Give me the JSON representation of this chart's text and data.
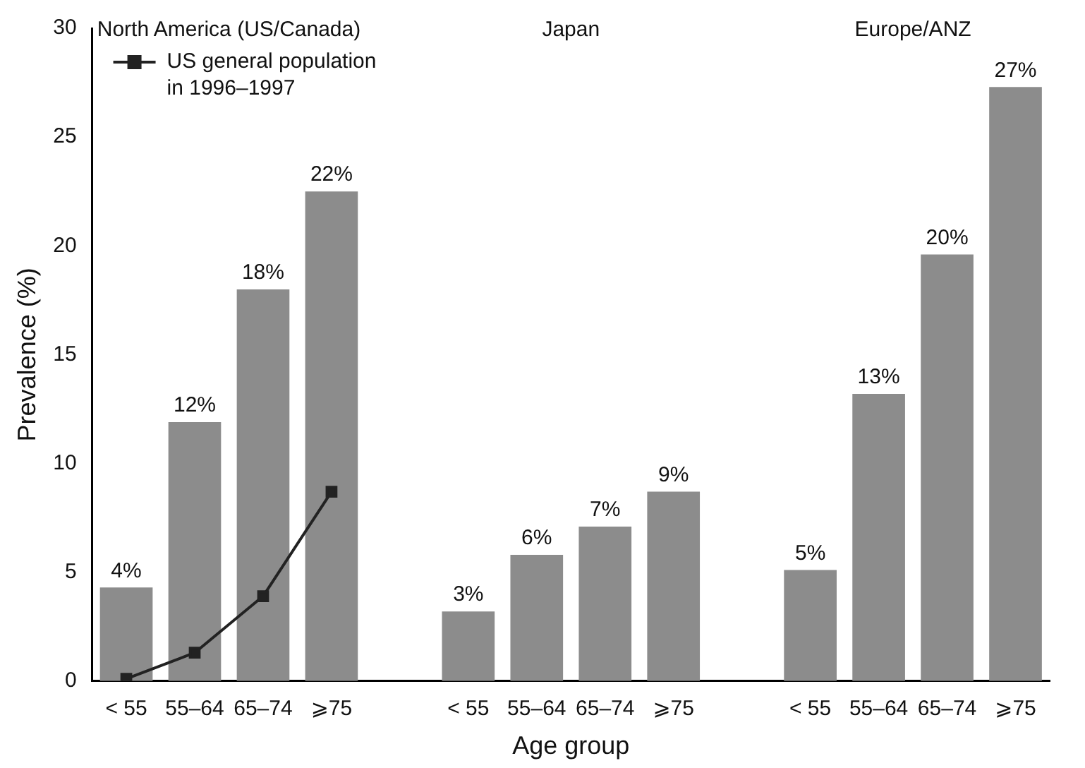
{
  "chart_data": {
    "type": "bar",
    "xlabel": "Age group",
    "ylabel": "Prevalence (%)",
    "annotations": [
      "North America (US/Canada)",
      "Japan",
      "Europe/ANZ"
    ],
    "categories": [
      "< 55",
      "55–64",
      "65–74",
      "⩾75",
      null,
      "< 55",
      "55–64",
      "65–74",
      "⩾75",
      null,
      "< 55",
      "55–64",
      "65–74",
      "⩾75"
    ],
    "series": [
      {
        "color": "#8c8c8c",
        "values": [
          4.3,
          11.9,
          18,
          22.5,
          null,
          3.2,
          5.8,
          7.1,
          8.7,
          null,
          5.1,
          13.2,
          19.6,
          27.3
        ],
        "value_labels": [
          "4%",
          "12%",
          "18%",
          "22%",
          null,
          "3%",
          "6%",
          "7%",
          "9%",
          null,
          "5%",
          "13%",
          "20%",
          "27%"
        ]
      },
      {
        "type": "line",
        "name": "US general population in 1996–1997",
        "color": "#222222",
        "marker": "square",
        "values": [
          0.1,
          1.3,
          3.9,
          8.7,
          null,
          null,
          null,
          null,
          null,
          null,
          null,
          null,
          null,
          null
        ]
      }
    ],
    "ylim": [
      0,
      30
    ],
    "yticks": [
      0,
      5,
      10,
      15,
      20,
      25,
      30
    ],
    "legend": "top left"
  }
}
